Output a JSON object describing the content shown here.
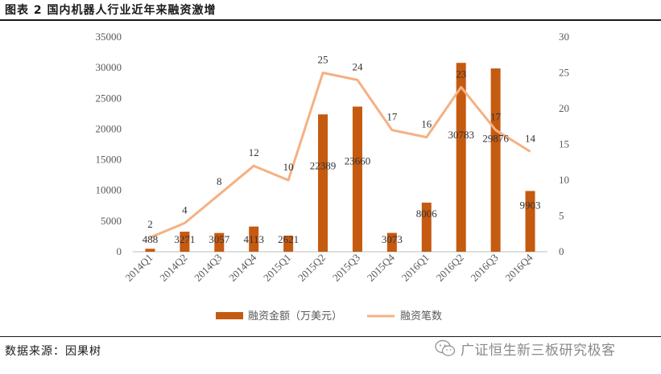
{
  "header": {
    "title": "图表 2  国内机器人行业近年来融资激增"
  },
  "footer": {
    "source": "数据来源：因果树",
    "watermark": "广证恒生新三板研究极客"
  },
  "colors": {
    "bar": "#C55A11",
    "line": "#F4B183",
    "axis": "#BFBFBF",
    "text": "#595959"
  },
  "chart_data": {
    "type": "bar",
    "title": "",
    "categories": [
      "2014Q1",
      "2014Q2",
      "2014Q3",
      "2014Q4",
      "2015Q1",
      "2015Q2",
      "2015Q3",
      "2015Q4",
      "2016Q1",
      "2016Q2",
      "2016Q3",
      "2016Q4"
    ],
    "series": [
      {
        "name": "融资金额（万美元）",
        "type": "bar",
        "axis": "left",
        "values": [
          488,
          3271,
          3057,
          4113,
          2621,
          22389,
          23660,
          3073,
          8006,
          30783,
          29876,
          9903
        ]
      },
      {
        "name": "融资笔数",
        "type": "line",
        "axis": "right",
        "values": [
          2,
          4,
          8,
          12,
          10,
          25,
          24,
          17,
          16,
          23,
          17,
          14
        ]
      }
    ],
    "ylim_left": [
      0,
      35000
    ],
    "yticks_left": [
      0,
      5000,
      10000,
      15000,
      20000,
      25000,
      30000,
      35000
    ],
    "ylim_right": [
      0,
      30
    ],
    "yticks_right": [
      0,
      5,
      10,
      15,
      20,
      25,
      30
    ],
    "grid": false,
    "legend_position": "bottom"
  }
}
